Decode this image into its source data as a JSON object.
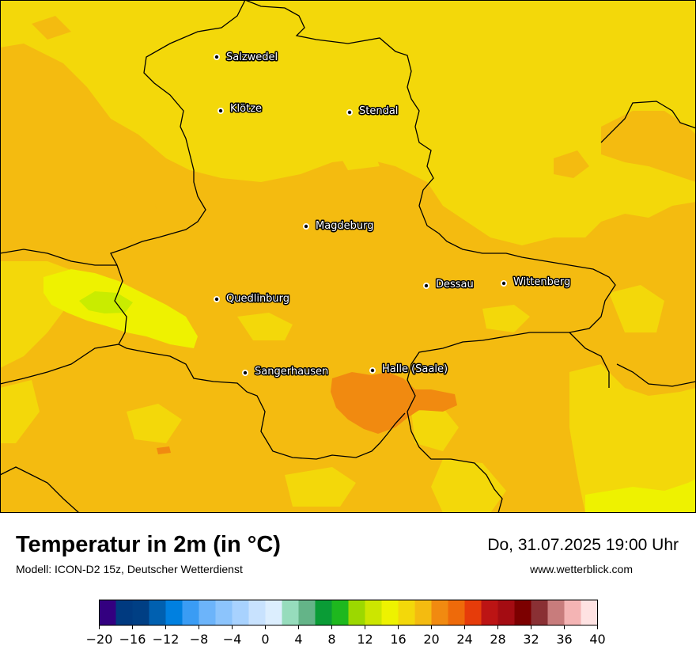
{
  "map": {
    "cities": [
      {
        "name": "Salzwedel"
      },
      {
        "name": "Klötze"
      },
      {
        "name": "Stendal"
      },
      {
        "name": "Magdeburg"
      },
      {
        "name": "Dessau"
      },
      {
        "name": "Wittenberg"
      },
      {
        "name": "Quedlinburg"
      },
      {
        "name": "Sangerhausen"
      },
      {
        "name": "Halle (Saale)"
      }
    ],
    "colors": {
      "background_yellow": "#f3d80a",
      "warm_orange": "#f4bb10",
      "hot_orange": "#f18a10",
      "cool_yellow": "#eef200",
      "cool_green": "#c9ec00",
      "border": "#000000"
    }
  },
  "footer": {
    "title": "Temperatur in 2m (in °C)",
    "subtitle": "Modell: ICON-D2 15z, Deutscher Wetterdienst",
    "datetime": "Do, 31.07.2025 19:00 Uhr",
    "website": "www.wetterblick.com"
  },
  "colorbar": {
    "colors": [
      "#330080",
      "#003a80",
      "#003f84",
      "#0060b0",
      "#0080e0",
      "#3a9cf4",
      "#6cb4fa",
      "#8cc4fc",
      "#a8d2fe",
      "#c8e2fe",
      "#dceefe",
      "#96dcbc",
      "#64b488",
      "#0a9c36",
      "#1eb81e",
      "#9cd800",
      "#cce600",
      "#eef200",
      "#f3d80a",
      "#f4bb10",
      "#f18a10",
      "#ee6a0a",
      "#e63c0a",
      "#bc1414",
      "#a40c12",
      "#7c0000",
      "#8a3034",
      "#c87c7c",
      "#f4b4b4",
      "#fee2e2"
    ],
    "tick_labels": [
      "−20",
      "−16",
      "−12",
      "−8",
      "−4",
      "0",
      "4",
      "8",
      "12",
      "16",
      "20",
      "24",
      "28",
      "32",
      "36",
      "40"
    ]
  }
}
